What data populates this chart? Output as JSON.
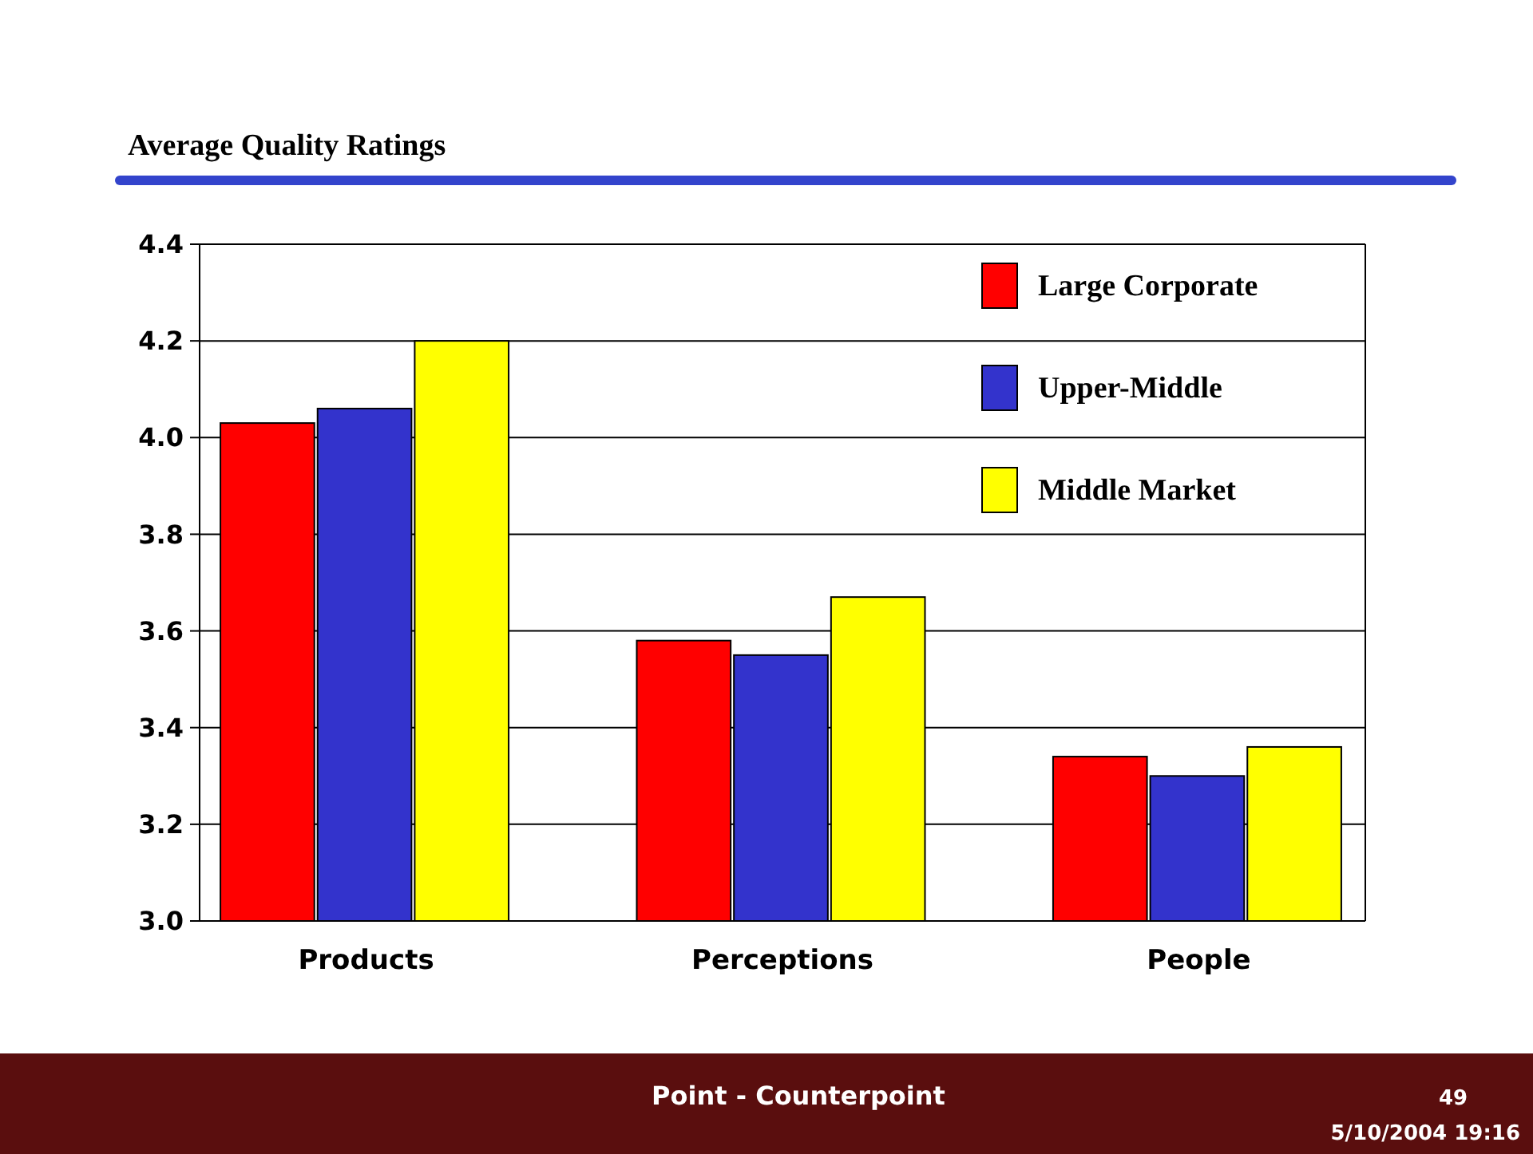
{
  "chart_data": {
    "type": "bar",
    "title": "Average Quality Ratings",
    "categories": [
      "Products",
      "Perceptions",
      "People"
    ],
    "series": [
      {
        "name": "Large Corporate",
        "color": "#ff0000",
        "values": [
          4.03,
          3.58,
          3.34
        ]
      },
      {
        "name": "Upper-Middle",
        "color": "#3333cc",
        "values": [
          4.06,
          3.55,
          3.3
        ]
      },
      {
        "name": "Middle Market",
        "color": "#ffff00",
        "values": [
          4.2,
          3.67,
          3.36
        ]
      }
    ],
    "ylim": [
      3.0,
      4.4
    ],
    "yticks": [
      {
        "value": 3.0,
        "label": "3.0"
      },
      {
        "value": 3.2,
        "label": "3.2"
      },
      {
        "value": 3.4,
        "label": "3.4"
      },
      {
        "value": 3.6,
        "label": "3.6"
      },
      {
        "value": 3.8,
        "label": "3.8"
      },
      {
        "value": 4.0,
        "label": "4.0"
      },
      {
        "value": 4.2,
        "label": "4.2"
      },
      {
        "value": 4.4,
        "label": "4.4"
      }
    ],
    "grid": "y",
    "legend": "top right",
    "annotations": [
      "Point - Counterpoint",
      "49",
      "5/10/2004 19:16"
    ]
  }
}
